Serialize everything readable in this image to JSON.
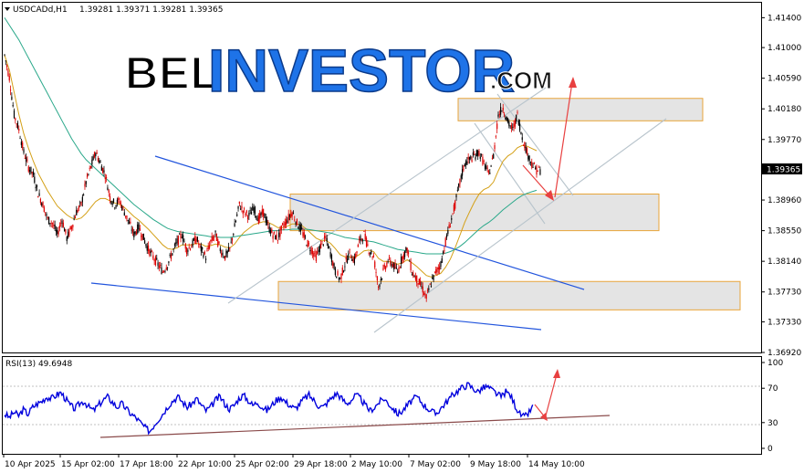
{
  "header": {
    "symbol_label": "USDCADd,H1",
    "ohlc": "1.39281 1.39371 1.39281 1.39365"
  },
  "logo": {
    "part1": "BEL",
    "part2": "INVESTOR",
    "part3": ".COM"
  },
  "chart_data": [
    {
      "type": "line",
      "title": "",
      "series": [
        {
          "kind": "candles",
          "color_up": "#000000",
          "color_down": "#dd0000",
          "y": [
            1.409,
            1.406,
            1.401,
            1.399,
            1.396,
            1.394,
            1.393,
            1.3905,
            1.389,
            1.387,
            1.3865,
            1.385,
            1.387,
            1.3845,
            1.386,
            1.388,
            1.389,
            1.392,
            1.394,
            1.396,
            1.3945,
            1.393,
            1.39,
            1.389,
            1.3895,
            1.388,
            1.3865,
            1.385,
            1.386,
            1.3845,
            1.383,
            1.382,
            1.381,
            1.38,
            1.381,
            1.3825,
            1.384,
            1.385,
            1.383,
            1.3835,
            1.3845,
            1.383,
            1.382,
            1.384,
            1.385,
            1.383,
            1.382,
            1.383,
            1.386,
            1.389,
            1.388,
            1.3875,
            1.3885,
            1.387,
            1.388,
            1.386,
            1.385,
            1.3845,
            1.386,
            1.387,
            1.388,
            1.3865,
            1.3855,
            1.384,
            1.383,
            1.382,
            1.3835,
            1.3845,
            1.3825,
            1.38,
            1.379,
            1.381,
            1.3825,
            1.3815,
            1.384,
            1.385,
            1.383,
            1.382,
            1.378,
            1.38,
            1.3815,
            1.381,
            1.38,
            1.382,
            1.383,
            1.38,
            1.379,
            1.378,
            1.3765,
            1.3785,
            1.38,
            1.381,
            1.384,
            1.3865,
            1.389,
            1.392,
            1.3945,
            1.395,
            1.3955,
            1.396,
            1.3945,
            1.393,
            1.3955,
            1.401,
            1.402,
            1.4,
            1.399,
            1.401,
            1.398,
            1.396,
            1.3945,
            1.3936
          ]
        },
        {
          "kind": "ma",
          "color": "#d4a017",
          "y": [
            1.409,
            1.407,
            1.404,
            1.401,
            1.3985,
            1.3965,
            1.3948,
            1.3932,
            1.392,
            1.3908,
            1.3898,
            1.3888,
            1.3882,
            1.3876,
            1.3872,
            1.387,
            1.3872,
            1.3878,
            1.3886,
            1.3894,
            1.3898,
            1.3898,
            1.3895,
            1.3892,
            1.389,
            1.3886,
            1.388,
            1.3874,
            1.3869,
            1.3863,
            1.3857,
            1.385,
            1.3843,
            1.3836,
            1.3831,
            1.383,
            1.3832,
            1.3836,
            1.3836,
            1.3836,
            1.3838,
            1.3837,
            1.3834,
            1.3835,
            1.3837,
            1.3836,
            1.3833,
            1.3832,
            1.3837,
            1.3846,
            1.3853,
            1.3858,
            1.3863,
            1.3865,
            1.3867,
            1.3866,
            1.3863,
            1.3859,
            1.3859,
            1.3861,
            1.3864,
            1.3864,
            1.3862,
            1.3857,
            1.3851,
            1.3845,
            1.3842,
            1.3842,
            1.3838,
            1.3831,
            1.3823,
            1.382,
            1.382,
            1.3819,
            1.3823,
            1.3828,
            1.3829,
            1.3827,
            1.3818,
            1.3814,
            1.3814,
            1.3813,
            1.381,
            1.3812,
            1.3816,
            1.3812,
            1.3807,
            1.3801,
            1.3795,
            1.3793,
            1.3795,
            1.3798,
            1.3806,
            1.3817,
            1.3832,
            1.3849,
            1.3866,
            1.388,
            1.3893,
            1.3904,
            1.391,
            1.3913,
            1.392,
            1.3935,
            1.3948,
            1.3955,
            1.3959,
            1.3966,
            1.3969,
            1.3968,
            1.3965,
            1.3962
          ]
        },
        {
          "kind": "ma",
          "color": "#2aa88a",
          "y": [
            1.414,
            1.413,
            1.412,
            1.411,
            1.4098,
            1.4086,
            1.4074,
            1.4062,
            1.405,
            1.4038,
            1.4026,
            1.4014,
            1.4002,
            1.399,
            1.3978,
            1.3968,
            1.3958,
            1.395,
            1.3944,
            1.3938,
            1.3932,
            1.3926,
            1.392,
            1.3914,
            1.3908,
            1.3902,
            1.3896,
            1.389,
            1.3885,
            1.388,
            1.3875,
            1.387,
            1.3866,
            1.3862,
            1.3858,
            1.3856,
            1.3854,
            1.3853,
            1.3852,
            1.3851,
            1.385,
            1.3849,
            1.3848,
            1.3847,
            1.3847,
            1.3846,
            1.3846,
            1.3846,
            1.3847,
            1.3848,
            1.3849,
            1.385,
            1.3851,
            1.3852,
            1.3853,
            1.3854,
            1.3855,
            1.3855,
            1.3856,
            1.3856,
            1.3857,
            1.3857,
            1.3857,
            1.3857,
            1.3856,
            1.3855,
            1.3854,
            1.3853,
            1.3852,
            1.385,
            1.3848,
            1.3846,
            1.3845,
            1.3844,
            1.3843,
            1.3842,
            1.3841,
            1.384,
            1.3838,
            1.3836,
            1.3834,
            1.3832,
            1.383,
            1.3829,
            1.3828,
            1.3827,
            1.3826,
            1.3825,
            1.3824,
            1.3824,
            1.3824,
            1.3824,
            1.3825,
            1.3827,
            1.383,
            1.3834,
            1.3839,
            1.3845,
            1.3851,
            1.3857,
            1.3862,
            1.3866,
            1.3871,
            1.3877,
            1.3883,
            1.3888,
            1.3893,
            1.3898,
            1.3902,
            1.3905,
            1.3907,
            1.3909
          ]
        }
      ],
      "price_axis_ticks": [
        "1.41400",
        "1.41000",
        "1.40590",
        "1.40180",
        "1.39770",
        "1.38960",
        "1.38550",
        "1.38140",
        "1.37730",
        "1.37330",
        "1.36920"
      ],
      "current_price_label": "1.39365",
      "ylim": [
        1.3692,
        1.416
      ],
      "x_ticks": [
        "10 Apr 2025",
        "15 Apr 02:00",
        "17 Apr 18:00",
        "22 Apr 10:00",
        "25 Apr 02:00",
        "29 Apr 18:00",
        "2 May 10:00",
        "7 May 02:00",
        "9 May 18:00",
        "14 May 10:00"
      ],
      "zones": [
        {
          "from": 1.4002,
          "to": 1.4032
        },
        {
          "from": 1.3855,
          "to": 1.3904
        },
        {
          "from": 1.3749,
          "to": 1.3787
        }
      ]
    },
    {
      "type": "line",
      "title": "RSI(13) 49.6948",
      "ylim": [
        0,
        100
      ],
      "levels": [
        "100",
        "70",
        "30",
        "0"
      ],
      "series": [
        {
          "kind": "rsi",
          "color": "#0000dd",
          "y": [
            40,
            36,
            42,
            38,
            45,
            40,
            48,
            52,
            55,
            60,
            58,
            62,
            65,
            58,
            50,
            46,
            52,
            55,
            48,
            44,
            50,
            56,
            60,
            54,
            48,
            52,
            46,
            40,
            36,
            30,
            24,
            20,
            28,
            35,
            42,
            50,
            56,
            60,
            54,
            48,
            52,
            58,
            50,
            44,
            48,
            56,
            60,
            52,
            46,
            50,
            58,
            62,
            56,
            50,
            54,
            48,
            44,
            50,
            56,
            60,
            54,
            50,
            46,
            52,
            58,
            62,
            56,
            50,
            48,
            54,
            60,
            64,
            58,
            52,
            56,
            62,
            58,
            50,
            44,
            48,
            54,
            58,
            52,
            46,
            40,
            44,
            50,
            56,
            60,
            54,
            48,
            44,
            40,
            46,
            52,
            58,
            64,
            68,
            72,
            74,
            70,
            66,
            70,
            72,
            68,
            64,
            60,
            66,
            62,
            50,
            40,
            36,
            42,
            50
          ]
        }
      ]
    }
  ]
}
